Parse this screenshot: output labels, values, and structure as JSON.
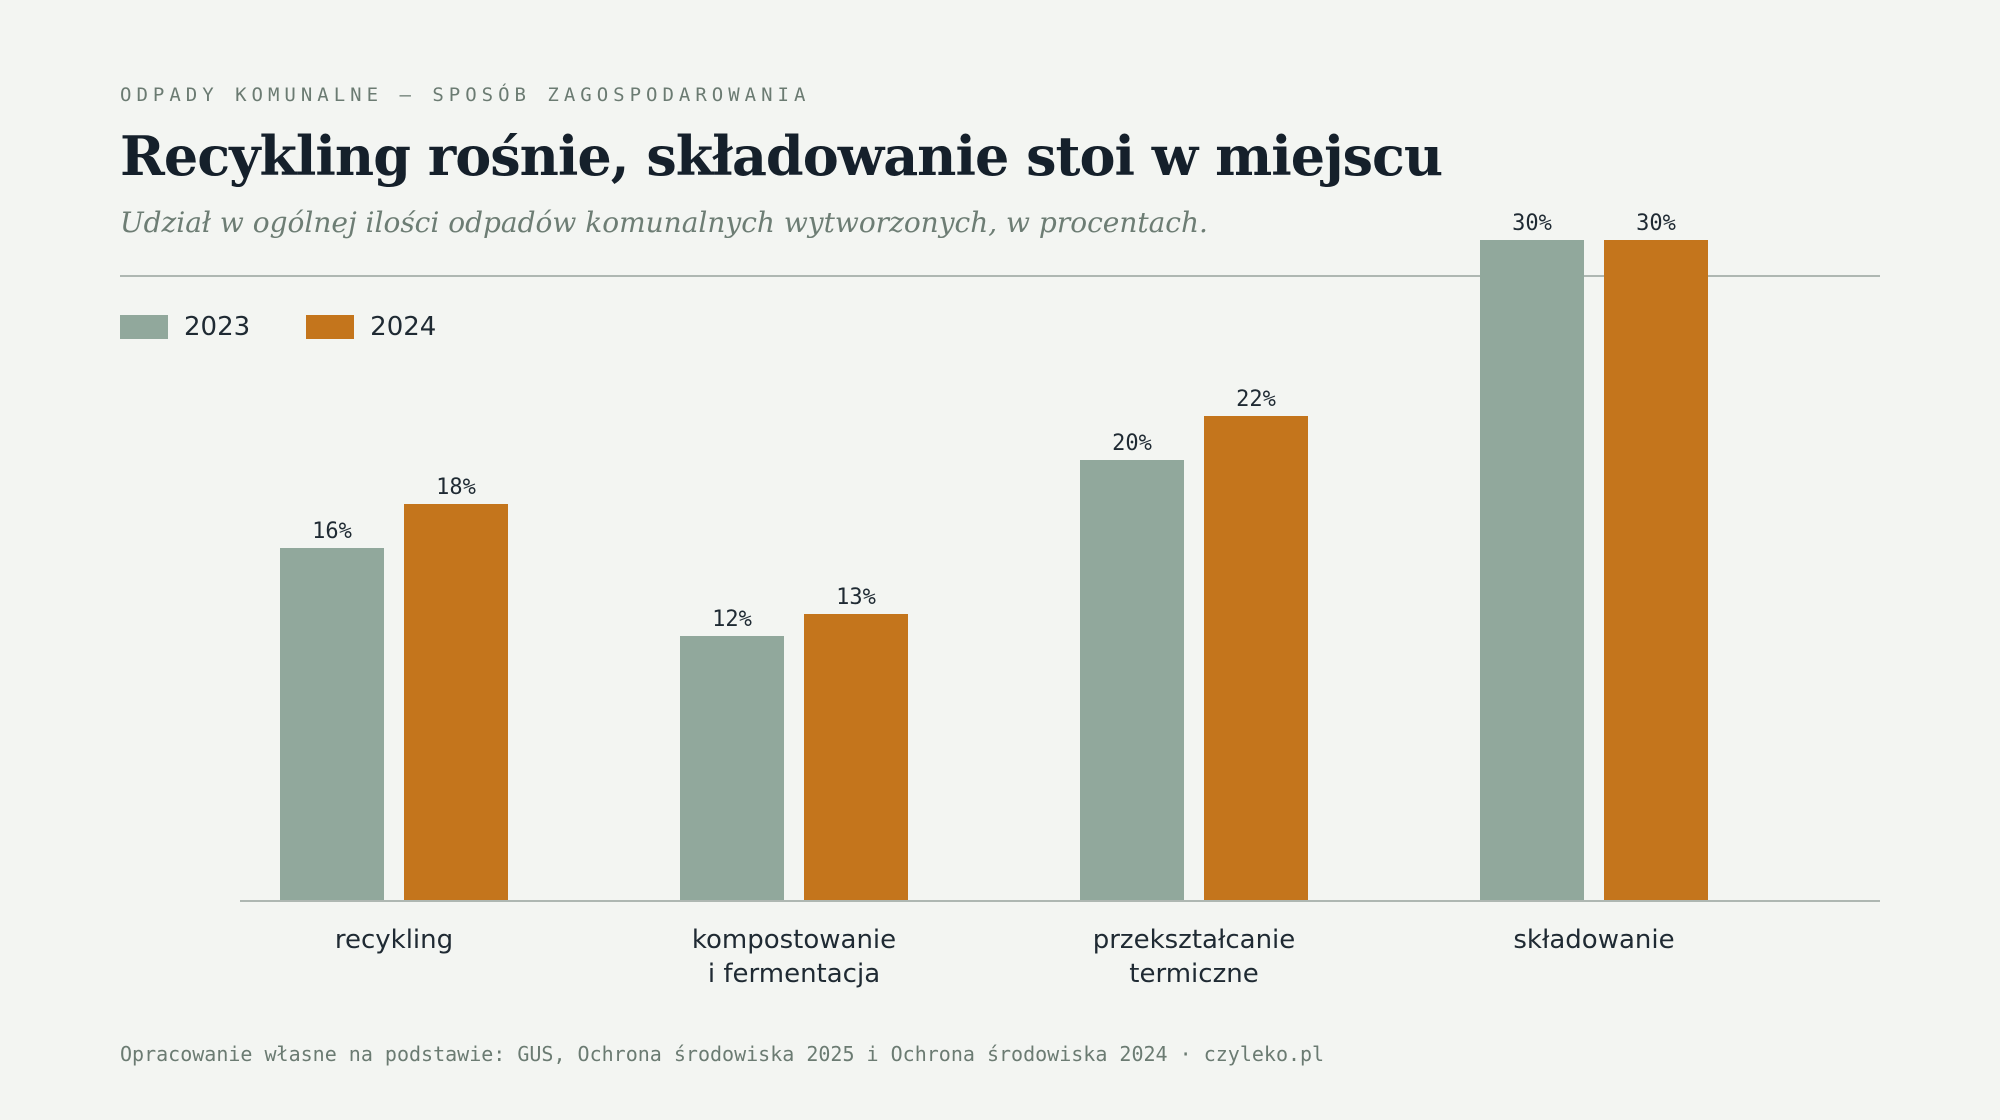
{
  "header": {
    "kicker": "ODPADY KOMUNALNE — SPOSÓB ZAGOSPODAROWANIA",
    "title": "Recykling rośnie, składowanie stoi w miejscu",
    "subtitle": "Udział w ogólnej ilości odpadów komunalnych wytworzonych, w procentach."
  },
  "footer": {
    "source": "Opracowanie własne na podstawie: GUS, Ochrona środowiska 2025 i Ochrona środowiska 2024 · czyleko.pl"
  },
  "colors": {
    "series_2023": "#91a89c",
    "series_2024": "#c4751c",
    "axis": "#aeb7b2",
    "label": "#1f2a33"
  },
  "chart_data": {
    "type": "bar",
    "title": "Recykling rośnie, składowanie stoi w miejscu",
    "subtitle": "Udział w ogólnej ilości odpadów komunalnych wytworzonych, w procentach.",
    "categories": [
      [
        "recykling"
      ],
      [
        "kompostowanie",
        "i fermentacja"
      ],
      [
        "przekształcanie",
        "termiczne"
      ],
      [
        "składowanie"
      ]
    ],
    "series": [
      {
        "name": "2023",
        "values": [
          16,
          12,
          20,
          30
        ],
        "labels": [
          "16%",
          "12%",
          "20%",
          "30%"
        ]
      },
      {
        "name": "2024",
        "values": [
          18,
          13,
          22,
          30
        ],
        "labels": [
          "18%",
          "13%",
          "22%",
          "30%"
        ]
      }
    ],
    "ylim": [
      0,
      30
    ],
    "legend": "top-left",
    "grid": false
  }
}
